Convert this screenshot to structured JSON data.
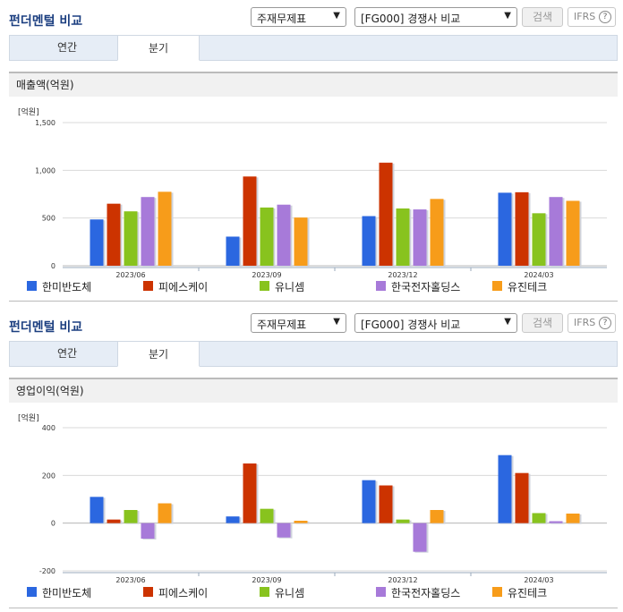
{
  "colors": [
    "#2b67e0",
    "#cc3300",
    "#88c31e",
    "#a77ad9",
    "#f79c1a"
  ],
  "companies": [
    "한미반도체",
    "피에스케이",
    "유니셈",
    "한국전자홀딩스",
    "유진테크"
  ],
  "panels": [
    {
      "title": "펀더멘털 비교",
      "select1": "주재무제표",
      "select2": "[FG000] 경쟁사 비교",
      "search_label": "검색",
      "ifrs_label": "IFRS",
      "ifrs_help": "?",
      "tabs": [
        "연간",
        "분기"
      ],
      "active_tab": "분기",
      "metric": "매출액(억원)",
      "unit": "[억원]"
    },
    {
      "title": "펀더멘털 비교",
      "select1": "주재무제표",
      "select2": "[FG000] 경쟁사 비교",
      "search_label": "검색",
      "ifrs_label": "IFRS",
      "ifrs_help": "?",
      "tabs": [
        "연간",
        "분기"
      ],
      "active_tab": "분기",
      "metric": "영업이익(억원)",
      "unit": "[억원]"
    }
  ],
  "chart_data": [
    {
      "type": "bar",
      "title": "매출액(억원)",
      "ylabel": "[억원]",
      "categories": [
        "2023/06",
        "2023/09",
        "2023/12",
        "2024/03"
      ],
      "ylim": [
        0,
        1500
      ],
      "yticks": [
        0,
        500,
        1000,
        1500
      ],
      "ytick_labels": [
        "0",
        "500",
        "1,000",
        "1,500"
      ],
      "grid": true,
      "legend": "bottom",
      "series": [
        {
          "name": "한미반도체",
          "values": [
            485,
            305,
            520,
            765
          ]
        },
        {
          "name": "피에스케이",
          "values": [
            650,
            935,
            1080,
            770
          ]
        },
        {
          "name": "유니셈",
          "values": [
            570,
            610,
            600,
            550
          ]
        },
        {
          "name": "한국전자홀딩스",
          "values": [
            720,
            640,
            590,
            720
          ]
        },
        {
          "name": "유진테크",
          "values": [
            775,
            505,
            700,
            680
          ]
        }
      ]
    },
    {
      "type": "bar",
      "title": "영업이익(억원)",
      "ylabel": "[억원]",
      "categories": [
        "2023/06",
        "2023/09",
        "2023/12",
        "2024/03"
      ],
      "ylim": [
        -200,
        400
      ],
      "yticks": [
        -200,
        0,
        200,
        400
      ],
      "ytick_labels": [
        "-200",
        "0",
        "200",
        "400"
      ],
      "grid": true,
      "legend": "bottom",
      "series": [
        {
          "name": "한미반도체",
          "values": [
            110,
            28,
            180,
            285
          ]
        },
        {
          "name": "피에스케이",
          "values": [
            15,
            250,
            158,
            210
          ]
        },
        {
          "name": "유니셈",
          "values": [
            55,
            60,
            15,
            42
          ]
        },
        {
          "name": "한국전자홀딩스",
          "values": [
            -65,
            -60,
            -120,
            8
          ]
        },
        {
          "name": "유진테크",
          "values": [
            83,
            10,
            55,
            40
          ]
        }
      ]
    }
  ]
}
